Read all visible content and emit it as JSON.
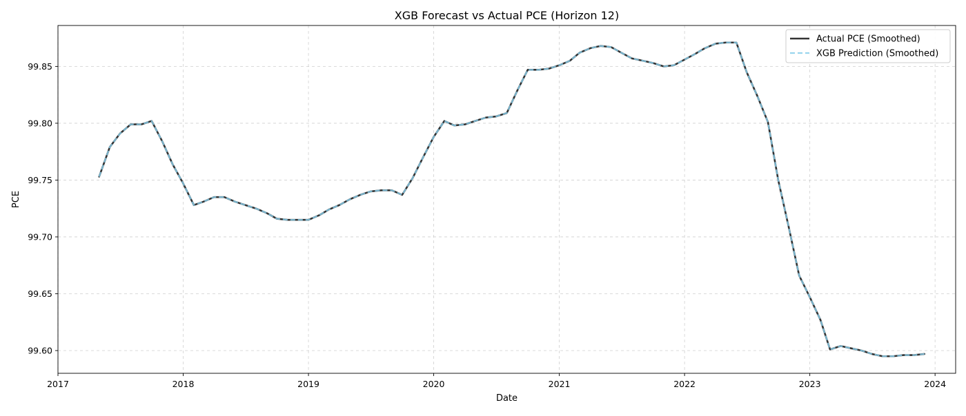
{
  "chart_data": {
    "type": "line",
    "title": "XGB Forecast vs Actual PCE (Horizon 12)",
    "xlabel": "Date",
    "ylabel": "PCE",
    "x_axis_type": "date",
    "xlim": [
      "2017-01-01",
      "2024-03-01"
    ],
    "ylim": [
      99.58,
      99.886
    ],
    "x_ticks": [
      {
        "value": "2017-01-01",
        "label": "2017"
      },
      {
        "value": "2018-01-01",
        "label": "2018"
      },
      {
        "value": "2019-01-01",
        "label": "2019"
      },
      {
        "value": "2020-01-01",
        "label": "2020"
      },
      {
        "value": "2021-01-01",
        "label": "2021"
      },
      {
        "value": "2022-01-01",
        "label": "2022"
      },
      {
        "value": "2023-01-01",
        "label": "2023"
      },
      {
        "value": "2024-01-01",
        "label": "2024"
      }
    ],
    "y_ticks": [
      {
        "value": 99.6,
        "label": "99.60"
      },
      {
        "value": 99.65,
        "label": "99.65"
      },
      {
        "value": 99.7,
        "label": "99.70"
      },
      {
        "value": 99.75,
        "label": "99.75"
      },
      {
        "value": 99.8,
        "label": "99.80"
      },
      {
        "value": 99.85,
        "label": "99.85"
      }
    ],
    "grid": true,
    "legend_position": "top-right",
    "x": [
      "2017-05",
      "2017-06",
      "2017-07",
      "2017-08",
      "2017-09",
      "2017-10",
      "2017-11",
      "2017-12",
      "2018-01",
      "2018-02",
      "2018-03",
      "2018-04",
      "2018-05",
      "2018-06",
      "2018-07",
      "2018-08",
      "2018-09",
      "2018-10",
      "2018-11",
      "2018-12",
      "2019-01",
      "2019-02",
      "2019-03",
      "2019-04",
      "2019-05",
      "2019-06",
      "2019-07",
      "2019-08",
      "2019-09",
      "2019-10",
      "2019-11",
      "2019-12",
      "2020-01",
      "2020-02",
      "2020-03",
      "2020-04",
      "2020-05",
      "2020-06",
      "2020-07",
      "2020-08",
      "2020-09",
      "2020-10",
      "2020-11",
      "2020-12",
      "2021-01",
      "2021-02",
      "2021-03",
      "2021-04",
      "2021-05",
      "2021-06",
      "2021-07",
      "2021-08",
      "2021-09",
      "2021-10",
      "2021-11",
      "2021-12",
      "2022-01",
      "2022-02",
      "2022-03",
      "2022-04",
      "2022-05",
      "2022-06",
      "2022-07",
      "2022-08",
      "2022-09",
      "2022-10",
      "2022-11",
      "2022-12",
      "2023-01",
      "2023-02",
      "2023-03",
      "2023-04",
      "2023-05",
      "2023-06",
      "2023-07",
      "2023-08",
      "2023-09",
      "2023-10",
      "2023-11",
      "2023-12"
    ],
    "series": [
      {
        "name": "Actual PCE (Smoothed)",
        "color": "#333333",
        "style": "solid",
        "values": [
          99.753,
          99.779,
          99.791,
          99.799,
          99.799,
          99.802,
          99.784,
          99.764,
          99.747,
          99.728,
          99.731,
          99.735,
          99.735,
          99.731,
          99.728,
          99.725,
          99.721,
          99.716,
          99.715,
          99.715,
          99.715,
          99.719,
          99.724,
          99.728,
          99.733,
          99.737,
          99.74,
          99.741,
          99.741,
          99.737,
          99.752,
          99.77,
          99.788,
          99.802,
          99.798,
          99.799,
          99.802,
          99.805,
          99.806,
          99.809,
          99.829,
          99.847,
          99.847,
          99.848,
          99.851,
          99.855,
          99.862,
          99.866,
          99.868,
          99.867,
          99.862,
          99.857,
          99.855,
          99.853,
          99.85,
          99.851,
          99.856,
          99.861,
          99.866,
          99.87,
          99.871,
          99.871,
          99.845,
          99.824,
          99.801,
          99.75,
          99.708,
          99.666,
          99.647,
          99.627,
          99.601,
          99.604,
          99.602,
          99.6,
          99.597,
          99.595,
          99.595,
          99.596,
          99.596,
          99.597
        ]
      },
      {
        "name": "XGB Prediction (Smoothed)",
        "color": "#87ceeb",
        "style": "dashed",
        "values": [
          99.753,
          99.779,
          99.791,
          99.799,
          99.799,
          99.802,
          99.784,
          99.764,
          99.747,
          99.728,
          99.731,
          99.735,
          99.735,
          99.731,
          99.728,
          99.725,
          99.721,
          99.716,
          99.715,
          99.715,
          99.715,
          99.719,
          99.724,
          99.728,
          99.733,
          99.737,
          99.74,
          99.741,
          99.741,
          99.737,
          99.752,
          99.77,
          99.788,
          99.802,
          99.798,
          99.799,
          99.802,
          99.805,
          99.806,
          99.809,
          99.829,
          99.847,
          99.847,
          99.848,
          99.851,
          99.855,
          99.862,
          99.866,
          99.868,
          99.867,
          99.862,
          99.857,
          99.855,
          99.853,
          99.85,
          99.851,
          99.856,
          99.861,
          99.866,
          99.87,
          99.871,
          99.871,
          99.845,
          99.824,
          99.801,
          99.75,
          99.708,
          99.666,
          99.647,
          99.627,
          99.601,
          99.604,
          99.602,
          99.6,
          99.597,
          99.595,
          99.595,
          99.596,
          99.596,
          99.597
        ]
      }
    ]
  }
}
